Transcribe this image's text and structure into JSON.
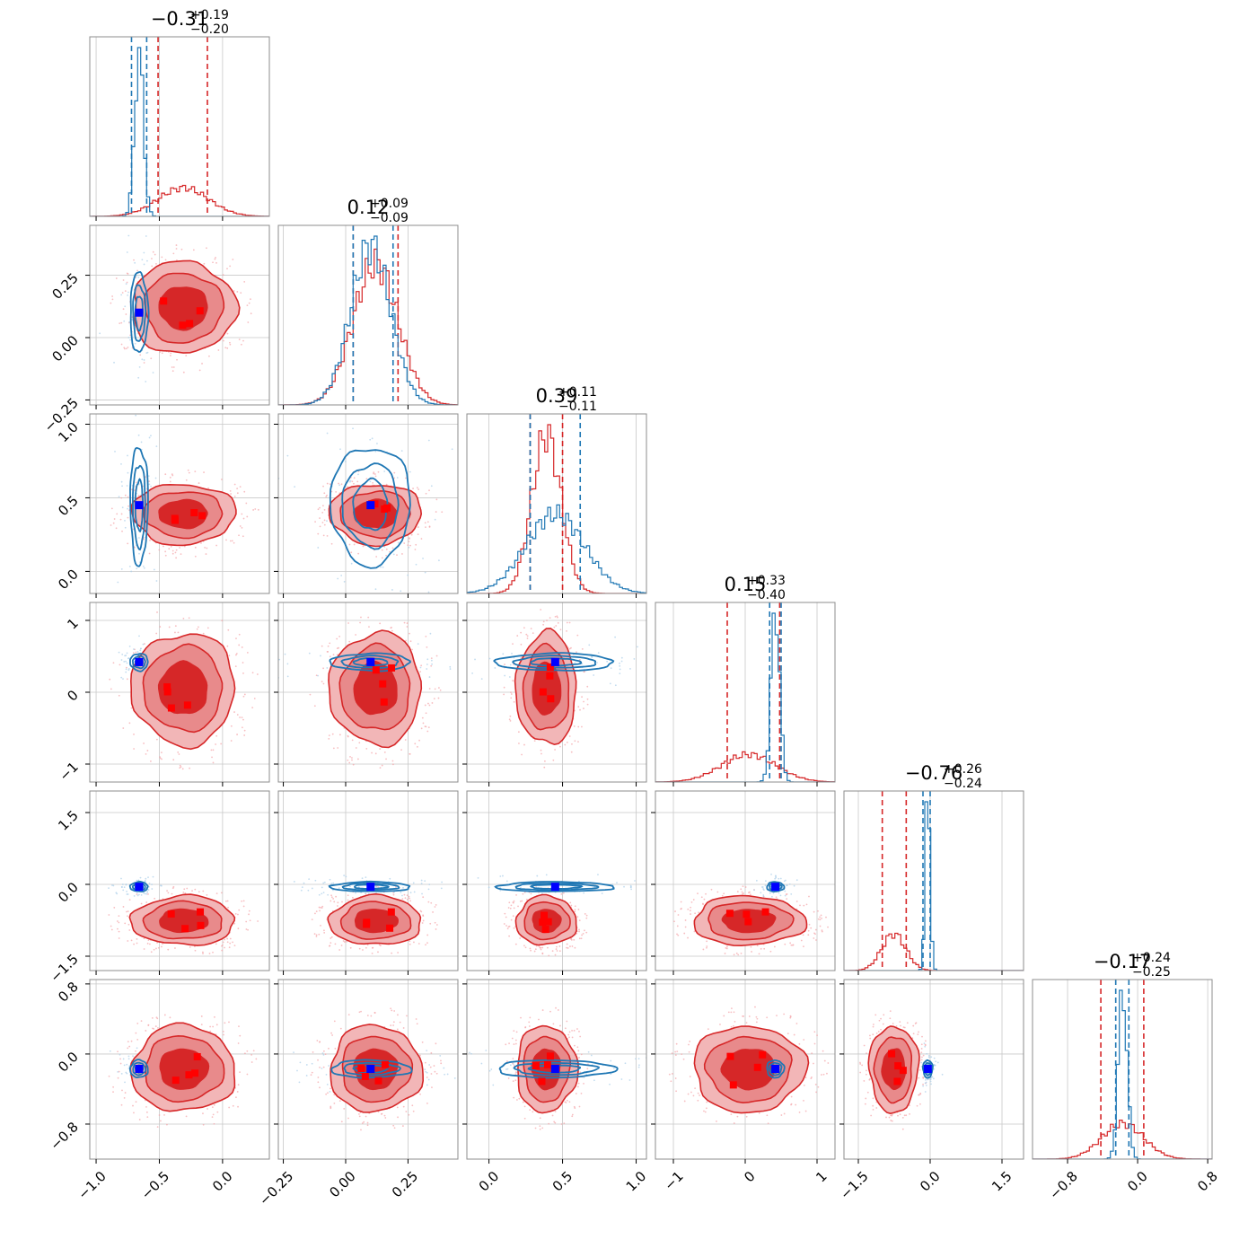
{
  "chart_data": {
    "type": "corner",
    "n_params": 6,
    "series": [
      {
        "name": "red posterior",
        "color": "#d62728",
        "fill": "#e88a8b"
      },
      {
        "name": "blue posterior",
        "color": "#1f77b4"
      }
    ],
    "params": [
      {
        "median": "0.31",
        "sign": "−",
        "plus": "+0.19",
        "minus": "−0.20",
        "range": [
          -1.05,
          0.37
        ],
        "ticks": [
          -1.0,
          -0.5,
          0.0
        ],
        "tick_labels": [
          "−1.0",
          "−0.5",
          "0.0"
        ],
        "red": {
          "mean": -0.31,
          "sd": 0.2,
          "q": [
            -0.51,
            -0.12
          ]
        },
        "blue": {
          "mean": -0.66,
          "sd": 0.035,
          "q": [
            -0.72,
            -0.6
          ]
        }
      },
      {
        "median": "0.12",
        "sign": "",
        "plus": "+0.09",
        "minus": "−0.09",
        "range": [
          -0.27,
          0.45
        ],
        "ticks": [
          -0.25,
          0.0,
          0.25
        ],
        "tick_labels": [
          "−0.25",
          "0.00",
          "0.25"
        ],
        "red": {
          "mean": 0.12,
          "sd": 0.09,
          "q": [
            0.03,
            0.21
          ]
        },
        "blue": {
          "mean": 0.1,
          "sd": 0.08,
          "q": [
            0.03,
            0.19
          ]
        }
      },
      {
        "median": "0.39",
        "sign": "",
        "plus": "+0.11",
        "minus": "−0.11",
        "range": [
          -0.15,
          1.07
        ],
        "ticks": [
          0.0,
          0.5,
          1.0
        ],
        "tick_labels": [
          "0.0",
          "0.5",
          "1.0"
        ],
        "red": {
          "mean": 0.39,
          "sd": 0.1,
          "q": [
            0.28,
            0.5
          ]
        },
        "blue": {
          "mean": 0.45,
          "sd": 0.2,
          "q": [
            0.28,
            0.62
          ]
        }
      },
      {
        "median": "0.15",
        "sign": "",
        "plus": "+0.33",
        "minus": "−0.40",
        "range": [
          -1.25,
          1.25
        ],
        "ticks": [
          -1,
          0,
          1
        ],
        "tick_labels": [
          "−1",
          "0",
          "1"
        ],
        "red": {
          "mean": 0.05,
          "sd": 0.38,
          "q": [
            -0.25,
            0.48
          ]
        },
        "blue": {
          "mean": 0.42,
          "sd": 0.06,
          "q": [
            0.34,
            0.5
          ]
        }
      },
      {
        "median": "0.76",
        "sign": "−",
        "plus": "+0.26",
        "minus": "−0.24",
        "range": [
          -1.8,
          1.95
        ],
        "ticks": [
          -1.5,
          0.0,
          1.5
        ],
        "tick_labels": [
          "−1.5",
          "0.0",
          "1.5"
        ],
        "red": {
          "mean": -0.76,
          "sd": 0.25,
          "q": [
            -1.0,
            -0.5
          ]
        },
        "blue": {
          "mean": -0.05,
          "sd": 0.05,
          "q": [
            -0.15,
            0.0
          ]
        }
      },
      {
        "median": "0.17",
        "sign": "−",
        "plus": "+0.24",
        "minus": "−0.25",
        "range": [
          -1.2,
          0.85
        ],
        "ticks": [
          -0.8,
          0.0,
          0.8
        ],
        "tick_labels": [
          "−0.8",
          "0.0",
          "0.8"
        ],
        "red": {
          "mean": -0.17,
          "sd": 0.24,
          "q": [
            -0.42,
            0.07
          ]
        },
        "blue": {
          "mean": -0.17,
          "sd": 0.05,
          "q": [
            -0.25,
            -0.1
          ]
        }
      }
    ]
  }
}
